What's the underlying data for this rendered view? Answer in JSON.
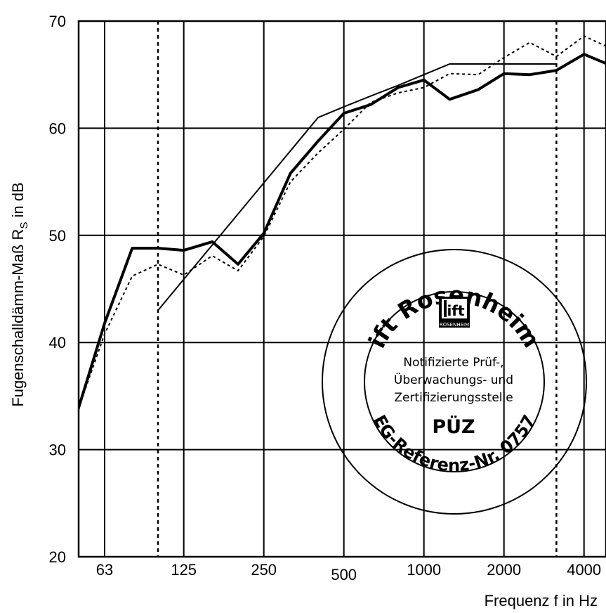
{
  "chart_data": {
    "type": "line",
    "ylabel": "Fugenschalldämm-Maß R",
    "ylabel_sub": "S",
    "ylabel_unit": " in dB",
    "xlabel": "Frequenz f in Hz",
    "ylim": [
      20,
      70
    ],
    "y_ticks": [
      "20",
      "30",
      "40",
      "50",
      "60",
      "70"
    ],
    "x_scale": "log",
    "x_ticks": [
      "63",
      "125",
      "250",
      "500",
      "1000",
      "2000",
      "4000"
    ],
    "x_tick_values": [
      63,
      125,
      250,
      500,
      1000,
      2000,
      4000
    ],
    "x_gridlines": [
      63,
      125,
      250,
      500,
      1000,
      2000,
      4000
    ],
    "x_dashed_lines": [
      100,
      3150
    ],
    "grid": true,
    "series": [
      {
        "style": "bold",
        "x": [
          50,
          63,
          80,
          100,
          125,
          160,
          200,
          250,
          315,
          400,
          500,
          630,
          800,
          1000,
          1250,
          1600,
          2000,
          2500,
          3150,
          4000,
          5000
        ],
        "y": [
          33.7,
          41.8,
          48.8,
          48.8,
          48.6,
          49.4,
          47.3,
          50.2,
          55.8,
          58.8,
          61.4,
          62.2,
          63.8,
          64.5,
          62.7,
          63.6,
          65.1,
          65.0,
          65.4,
          66.9,
          65.9
        ]
      },
      {
        "style": "dotted",
        "x": [
          50,
          63,
          80,
          100,
          125,
          160,
          200,
          250,
          315,
          400,
          500,
          630,
          800,
          1000,
          1250,
          1600,
          2000,
          2500,
          3150,
          4000,
          5000
        ],
        "y": [
          33.7,
          40.8,
          46.2,
          47.3,
          46.3,
          48.1,
          46.7,
          49.9,
          55.0,
          57.7,
          59.9,
          62.4,
          63.3,
          63.8,
          65.1,
          65.0,
          66.6,
          68.0,
          66.7,
          68.6,
          67.5
        ]
      },
      {
        "style": "thin",
        "x": [
          100,
          400,
          500,
          630,
          800,
          1000,
          1250,
          1600,
          2000,
          2500,
          3150
        ],
        "y": [
          43.0,
          61.0,
          62.0,
          63.0,
          64.0,
          65.0,
          66.0,
          66.0,
          66.0,
          66.0,
          66.0
        ]
      }
    ]
  },
  "stamp": {
    "top_arc": "ift Rosenheim",
    "bottom_arc": "EG-Referenz-Nr. 0757",
    "logo_text": "ift",
    "logo_subtext": "ROSENHEIM",
    "line1": "Notifizierte Prüf-,",
    "line2": "Überwachungs- und",
    "line3": "Zertifizierungsstelle",
    "puz": "PÜZ"
  }
}
